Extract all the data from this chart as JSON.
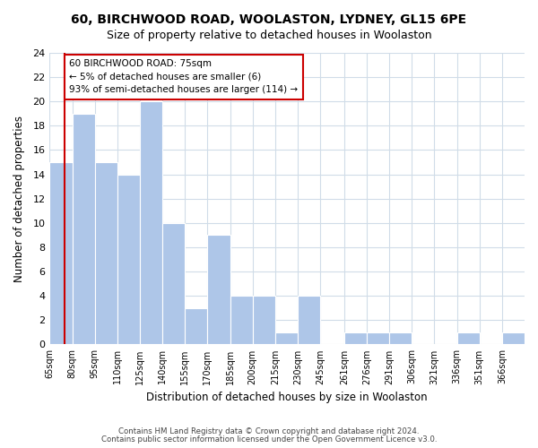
{
  "title": "60, BIRCHWOOD ROAD, WOOLASTON, LYDNEY, GL15 6PE",
  "subtitle": "Size of property relative to detached houses in Woolaston",
  "bar_edges": [
    65,
    80,
    95,
    110,
    125,
    140,
    155,
    170,
    185,
    200,
    215,
    230,
    245,
    261,
    276,
    291,
    306,
    321,
    336,
    351,
    366,
    381
  ],
  "bar_heights": [
    15,
    19,
    15,
    14,
    20,
    10,
    3,
    9,
    4,
    4,
    1,
    4,
    0,
    1,
    1,
    1,
    0,
    0,
    1,
    0,
    1
  ],
  "bar_color": "#aec6e8",
  "bar_edge_color": "#ffffff",
  "reference_line_x": 75,
  "reference_line_color": "#cc0000",
  "xlabel": "Distribution of detached houses by size in Woolaston",
  "ylabel": "Number of detached properties",
  "ylim": [
    0,
    24
  ],
  "yticks": [
    0,
    2,
    4,
    6,
    8,
    10,
    12,
    14,
    16,
    18,
    20,
    22,
    24
  ],
  "xlim": [
    65,
    381
  ],
  "annotation_title": "60 BIRCHWOOD ROAD: 75sqm",
  "annotation_line1": "← 5% of detached houses are smaller (6)",
  "annotation_line2": "93% of semi-detached houses are larger (114) →",
  "footnote1": "Contains HM Land Registry data © Crown copyright and database right 2024.",
  "footnote2": "Contains public sector information licensed under the Open Government Licence v3.0.",
  "bg_color": "#ffffff",
  "grid_color": "#d0dce8",
  "tick_labels": [
    "65sqm",
    "80sqm",
    "95sqm",
    "110sqm",
    "125sqm",
    "140sqm",
    "155sqm",
    "170sqm",
    "185sqm",
    "200sqm",
    "215sqm",
    "230sqm",
    "245sqm",
    "261sqm",
    "276sqm",
    "291sqm",
    "306sqm",
    "321sqm",
    "336sqm",
    "351sqm",
    "366sqm"
  ]
}
